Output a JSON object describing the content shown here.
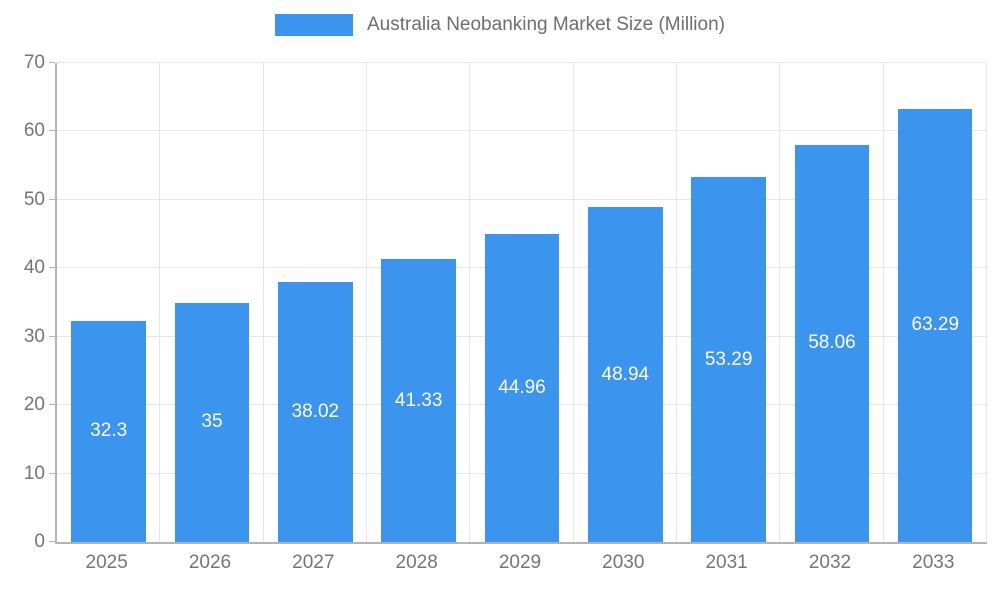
{
  "legend": {
    "label": "Australia Neobanking Market Size (Million)"
  },
  "chart_data": {
    "type": "bar",
    "title": "Australia Neobanking Market Size (Million)",
    "categories": [
      "2025",
      "2026",
      "2027",
      "2028",
      "2029",
      "2030",
      "2031",
      "2032",
      "2033"
    ],
    "values": [
      32.3,
      35,
      38.02,
      41.33,
      44.96,
      48.94,
      53.29,
      58.06,
      63.29
    ],
    "value_labels": [
      "32.3",
      "35",
      "38.02",
      "41.33",
      "44.96",
      "48.94",
      "53.29",
      "58.06",
      "63.29"
    ],
    "xlabel": "",
    "ylabel": "",
    "ylim": [
      0,
      70
    ],
    "yticks": [
      0,
      10,
      20,
      30,
      40,
      50,
      60,
      70
    ],
    "grid": true,
    "legend_position": "top",
    "bar_color": "#3b94ee",
    "value_label_color": "#ffffff",
    "axis_text_color": "#757575",
    "gridline_color": "#e6e6e6",
    "axis_line_color": "#b3b3b3"
  }
}
